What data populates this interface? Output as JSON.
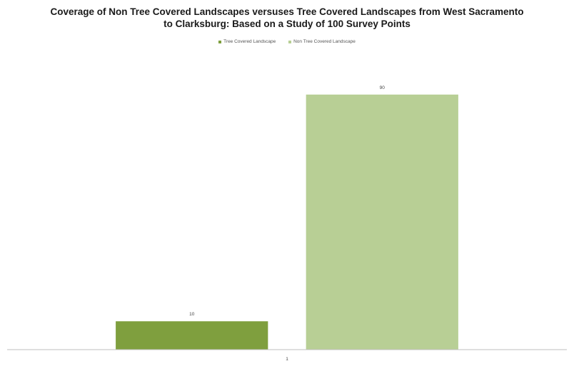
{
  "chart_data": {
    "type": "bar",
    "title_lines": [
      "Coverage of Non Tree Covered Landscapes versuses Tree Covered Landscapes from West Sacramento",
      "to Clarksburg: Based on a Study of 100 Survey Points"
    ],
    "categories": [
      "1"
    ],
    "series": [
      {
        "name": "Tree Covered Landscape",
        "values": [
          10
        ],
        "color": "#7f9f3e"
      },
      {
        "name": "Non Tree Covered Landscape",
        "values": [
          90
        ],
        "color": "#b8cf95"
      }
    ],
    "data_labels": [
      "10",
      "90"
    ],
    "ylim": [
      0,
      100
    ],
    "legend_position": "top",
    "grid": false
  }
}
